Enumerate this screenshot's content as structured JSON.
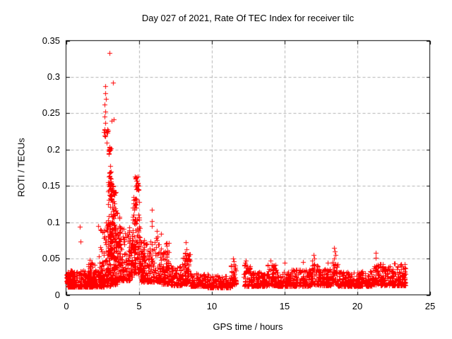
{
  "colors": {
    "foreground": "#000000",
    "background": "#ffffff",
    "grid": "#b0b0b0",
    "marker": "#ff0000"
  },
  "rng_seed": 20210127,
  "chart_data": {
    "type": "scatter",
    "title": "Day 027 of 2021, Rate Of TEC Index for receiver tilc",
    "xlabel": "GPS time / hours",
    "ylabel": "ROTI / TECUs",
    "xlim": [
      0,
      25
    ],
    "ylim": [
      0,
      0.35
    ],
    "xticks": [
      0,
      5,
      10,
      15,
      20,
      25
    ],
    "xtick_labels": [
      "0",
      "5",
      "10",
      "15",
      "20",
      "25"
    ],
    "yticks": [
      0,
      0.05,
      0.1,
      0.15,
      0.2,
      0.25,
      0.3,
      0.35
    ],
    "ytick_labels": [
      "0",
      "0.05",
      "0.1",
      "0.15",
      "0.2",
      "0.25",
      "0.3",
      "0.35"
    ],
    "grid": "dashed, at every major tick, both axes",
    "legend": "none",
    "marker": "plus",
    "marker_size_px": 7,
    "marker_color": "#ff0000",
    "time_span_hours": [
      0,
      23.35
    ],
    "data_gap_hours": [
      11.78,
      12.2
    ],
    "peak_point": {
      "x": 3.0,
      "y": 0.333
    },
    "summary": "Quiet band ~0.01-0.04 TECU all day; strong ROTI enhancement 2.6-6.5h peaking 0.333 at 3.0h with secondary cluster ~0.15 at 4.7-5.0h; minor streaks near 8.3, 11.5, 12.4, 17.0, 18.4, 21.3h; gap before 12.2h; data ends 23.35h.",
    "segment_format": [
      "x_start_hours",
      "x_end_hours",
      "n_points",
      "y_min",
      "y_max",
      "skew_power_toward_y_min"
    ],
    "segments": [
      [
        0.02,
        0.15,
        25,
        0.016,
        0.032,
        1.6
      ],
      [
        0.1,
        2.62,
        290,
        0.011,
        0.034,
        2.6
      ],
      [
        1.5,
        1.95,
        55,
        0.018,
        0.044,
        2.0
      ],
      [
        0.35,
        0.6,
        20,
        0.015,
        0.036,
        1.8
      ],
      [
        2.2,
        2.62,
        40,
        0.02,
        0.1,
        2.6
      ],
      [
        2.62,
        3.5,
        40,
        0.012,
        0.026,
        1.5
      ],
      [
        2.62,
        3.45,
        150,
        0.02,
        0.105,
        1.7
      ],
      [
        2.85,
        3.45,
        80,
        0.05,
        0.155,
        1.5
      ],
      [
        2.88,
        3.12,
        26,
        0.128,
        0.172,
        1.0
      ],
      [
        3.1,
        3.38,
        18,
        0.105,
        0.15,
        1.0
      ],
      [
        2.92,
        3.08,
        10,
        0.19,
        0.206,
        1.0
      ],
      [
        2.55,
        2.92,
        11,
        0.218,
        0.238,
        1.0
      ],
      [
        3.45,
        3.75,
        30,
        0.04,
        0.12,
        1.6
      ],
      [
        3.45,
        4.42,
        140,
        0.02,
        0.092,
        2.1
      ],
      [
        4.3,
        4.58,
        35,
        0.025,
        0.095,
        1.7
      ],
      [
        4.55,
        5.12,
        120,
        0.03,
        0.135,
        1.7
      ],
      [
        4.72,
        4.98,
        18,
        0.138,
        0.163,
        1.0
      ],
      [
        5.12,
        6.1,
        150,
        0.018,
        0.075,
        2.0
      ],
      [
        6.1,
        6.55,
        60,
        0.018,
        0.085,
        1.8
      ],
      [
        6.55,
        7.1,
        80,
        0.015,
        0.06,
        2.0
      ],
      [
        6.85,
        7.05,
        7,
        0.055,
        0.077,
        1.0
      ],
      [
        7.1,
        7.98,
        95,
        0.013,
        0.04,
        2.0
      ],
      [
        7.98,
        8.55,
        85,
        0.015,
        0.058,
        1.7
      ],
      [
        8.55,
        9.75,
        110,
        0.012,
        0.03,
        2.2
      ],
      [
        9.75,
        11.3,
        140,
        0.01,
        0.027,
        2.2
      ],
      [
        11.3,
        11.72,
        48,
        0.012,
        0.042,
        1.6
      ],
      [
        12.22,
        12.68,
        52,
        0.012,
        0.042,
        1.6
      ],
      [
        12.68,
        13.78,
        115,
        0.012,
        0.032,
        2.1
      ],
      [
        13.78,
        14.45,
        80,
        0.013,
        0.042,
        1.8
      ],
      [
        14.45,
        15.38,
        95,
        0.012,
        0.032,
        2.1
      ],
      [
        15.38,
        16.78,
        145,
        0.012,
        0.035,
        2.1
      ],
      [
        16.78,
        17.42,
        72,
        0.014,
        0.042,
        1.8
      ],
      [
        17.42,
        18.3,
        92,
        0.013,
        0.036,
        2.1
      ],
      [
        18.3,
        18.68,
        42,
        0.015,
        0.046,
        1.5
      ],
      [
        18.68,
        21.02,
        230,
        0.012,
        0.033,
        2.2
      ],
      [
        21.02,
        21.5,
        48,
        0.014,
        0.042,
        1.6
      ],
      [
        21.5,
        23.12,
        180,
        0.013,
        0.043,
        1.9
      ],
      [
        23.12,
        23.35,
        32,
        0.013,
        0.04,
        1.5
      ]
    ],
    "outliers": [
      [
        0.95,
        0.094
      ],
      [
        1.0,
        0.073
      ],
      [
        1.62,
        0.048
      ],
      [
        2.99,
        0.333
      ],
      [
        3.22,
        0.292
      ],
      [
        2.7,
        0.287
      ],
      [
        2.68,
        0.278
      ],
      [
        2.72,
        0.27
      ],
      [
        2.65,
        0.262
      ],
      [
        2.7,
        0.252
      ],
      [
        2.66,
        0.245
      ],
      [
        3.3,
        0.242
      ],
      [
        3.15,
        0.24
      ],
      [
        2.8,
        0.21
      ],
      [
        3.05,
        0.177
      ],
      [
        4.85,
        0.12
      ],
      [
        5.9,
        0.117
      ],
      [
        5.88,
        0.102
      ],
      [
        5.92,
        0.095
      ],
      [
        6.25,
        0.088
      ],
      [
        6.3,
        0.08
      ],
      [
        8.25,
        0.072
      ],
      [
        8.3,
        0.063
      ],
      [
        8.2,
        0.058
      ],
      [
        8.45,
        0.056
      ],
      [
        11.5,
        0.05
      ],
      [
        11.55,
        0.046
      ],
      [
        12.37,
        0.047
      ],
      [
        12.3,
        0.044
      ],
      [
        14.05,
        0.047
      ],
      [
        15.0,
        0.044
      ],
      [
        16.3,
        0.045
      ],
      [
        17.0,
        0.055
      ],
      [
        17.05,
        0.05
      ],
      [
        16.9,
        0.047
      ],
      [
        18.0,
        0.044
      ],
      [
        18.43,
        0.065
      ],
      [
        18.46,
        0.06
      ],
      [
        18.5,
        0.055
      ],
      [
        18.44,
        0.05
      ],
      [
        21.3,
        0.058
      ],
      [
        21.28,
        0.051
      ],
      [
        23.28,
        0.042
      ]
    ]
  }
}
